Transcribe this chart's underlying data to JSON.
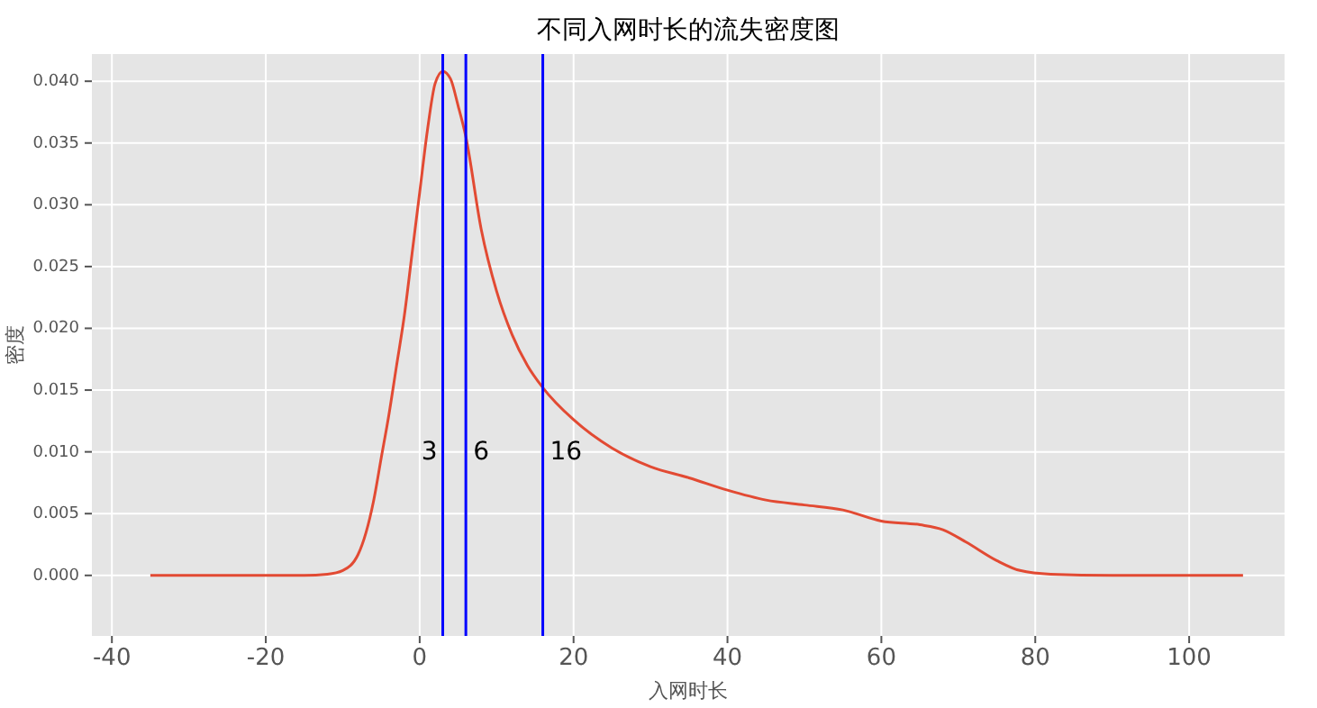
{
  "chart_data": {
    "type": "line",
    "title": "不同入网时长的流失密度图",
    "xlabel": "入网时长",
    "ylabel": "密度",
    "series": [
      {
        "color": "#e24a33",
        "x": [
          -35,
          -20,
          -15,
          -12,
          -10,
          -8,
          -6,
          -5,
          -4,
          -3,
          -2,
          -1,
          0,
          1,
          2,
          3,
          4,
          5,
          6,
          8,
          10,
          12,
          14,
          16,
          20,
          25,
          30,
          35,
          40,
          45,
          50,
          55,
          60,
          65,
          68,
          71,
          75,
          78,
          82,
          90,
          100,
          107
        ],
        "values": [
          0,
          0,
          0,
          0.0001,
          0.0004,
          0.0017,
          0.006,
          0.0095,
          0.013,
          0.017,
          0.021,
          0.026,
          0.031,
          0.036,
          0.0398,
          0.0408,
          0.0402,
          0.038,
          0.0355,
          0.028,
          0.023,
          0.0195,
          0.017,
          0.0152,
          0.0126,
          0.0103,
          0.0088,
          0.0079,
          0.0069,
          0.0061,
          0.0057,
          0.0053,
          0.0044,
          0.0041,
          0.0037,
          0.0027,
          0.0012,
          0.0004,
          0.0001,
          0,
          0,
          0
        ]
      }
    ],
    "xlim": [
      -42.6,
      112.4
    ],
    "ylim": [
      -0.0049,
      0.0422
    ],
    "xticks": [
      -40,
      -20,
      0,
      20,
      40,
      60,
      80,
      100
    ],
    "yticks": [
      {
        "value": 0,
        "label": "0.000"
      },
      {
        "value": 0.005,
        "label": "0.005"
      },
      {
        "value": 0.01,
        "label": "0.010"
      },
      {
        "value": 0.015,
        "label": "0.015"
      },
      {
        "value": 0.02,
        "label": "0.020"
      },
      {
        "value": 0.025,
        "label": "0.025"
      },
      {
        "value": 0.03,
        "label": "0.030"
      },
      {
        "value": 0.035,
        "label": "0.035"
      },
      {
        "value": 0.04,
        "label": "0.040"
      }
    ],
    "grid": true,
    "ref_lines": [
      {
        "axis": "x",
        "value": 3,
        "label": "3",
        "color": "#0000ff"
      },
      {
        "axis": "x",
        "value": 6,
        "label": "6",
        "color": "#0000ff"
      },
      {
        "axis": "x",
        "value": 16,
        "label": "16",
        "color": "#0000ff"
      }
    ]
  }
}
